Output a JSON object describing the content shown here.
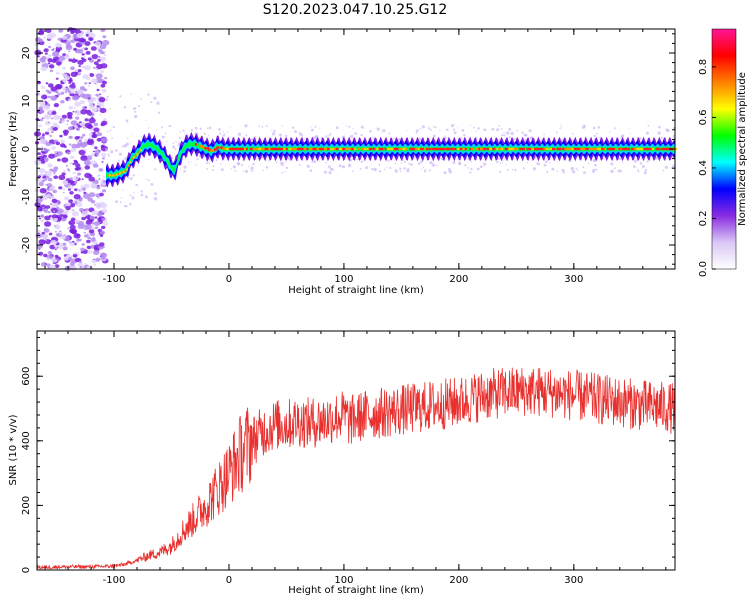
{
  "title": "S120.2023.047.10.25.G12",
  "chart_data": [
    {
      "type": "heatmap",
      "xlabel": "Height of straight line (km)",
      "ylabel": "Frequency (Hz)",
      "xlim": [
        -167,
        388
      ],
      "ylim": [
        -25,
        25
      ],
      "x_ticks": [
        -100,
        0,
        100,
        200,
        300
      ],
      "y_ticks": [
        -20,
        -10,
        0,
        10,
        20
      ],
      "colorbar": {
        "label": "Normalized spectral amplitude",
        "range": [
          0,
          0.95
        ],
        "ticks": [
          0.0,
          0.2,
          0.4,
          0.6,
          0.8
        ],
        "colors": [
          "#ffffff",
          "#d9c7f5",
          "#8a2be2",
          "#0000ff",
          "#00ffff",
          "#00ff00",
          "#ffff00",
          "#ff8000",
          "#ff0000",
          "#ff1493"
        ]
      },
      "ridge": {
        "x": [
          -107,
          -100,
          -95,
          -90,
          -85,
          -80,
          -75,
          -70,
          -65,
          -60,
          -55,
          -50,
          -47,
          -44,
          -40,
          -35,
          -30,
          -25,
          -20,
          -15,
          -10,
          -5,
          0,
          20,
          50,
          100,
          150,
          200,
          250,
          300,
          350,
          388
        ],
        "y": [
          -5.5,
          -5.5,
          -5,
          -4.5,
          -2,
          -1,
          0.5,
          1,
          0.5,
          -0.5,
          -2,
          -4,
          -4.5,
          -2,
          0,
          1,
          1,
          0.5,
          0,
          -0.5,
          0.5,
          0,
          0,
          0,
          0,
          0,
          0,
          0,
          0,
          0,
          0,
          0
        ]
      }
    },
    {
      "type": "line",
      "xlabel": "Height of straight line (km)",
      "ylabel": "SNR (10 * v/v)",
      "xlim": [
        -167,
        388
      ],
      "ylim": [
        0,
        740
      ],
      "x_ticks": [
        -100,
        0,
        100,
        200,
        300
      ],
      "y_ticks": [
        0,
        200,
        400,
        600
      ],
      "color": "#e8302e",
      "series": [
        {
          "x": [
            -167,
            -140,
            -120,
            -100,
            -90,
            -80,
            -70,
            -60,
            -50,
            -40,
            -30,
            -20,
            -10,
            0,
            10,
            20,
            30,
            40,
            50,
            60,
            70,
            80,
            90,
            100,
            105,
            110,
            120,
            140,
            160,
            180,
            200,
            220,
            240,
            260,
            280,
            300,
            320,
            340,
            360,
            388
          ],
          "values": [
            8,
            10,
            10,
            12,
            18,
            30,
            45,
            55,
            75,
            120,
            160,
            200,
            250,
            300,
            360,
            400,
            430,
            450,
            450,
            460,
            455,
            460,
            470,
            480,
            460,
            470,
            480,
            490,
            500,
            510,
            520,
            540,
            550,
            555,
            550,
            540,
            530,
            520,
            510,
            500
          ]
        }
      ]
    }
  ]
}
